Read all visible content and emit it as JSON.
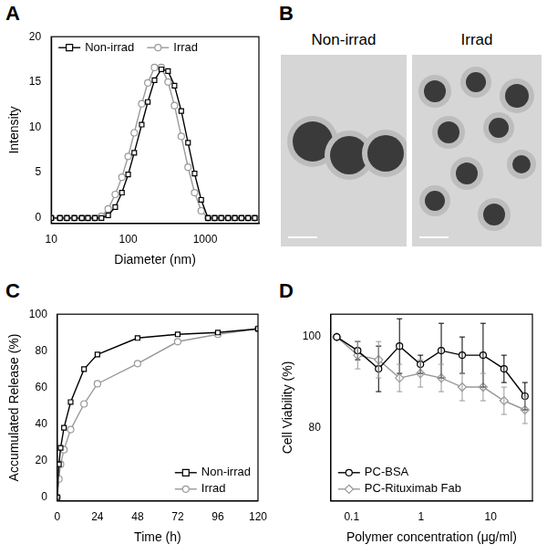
{
  "chart_data": [
    {
      "type": "line",
      "title": "A",
      "x_label": "Diameter (nm)",
      "y_label": "Intensity",
      "log": "x",
      "xlim": [
        10,
        5000
      ],
      "xticks": [
        10,
        100,
        1000
      ],
      "ylim": [
        -0.6,
        20
      ],
      "yticks": [
        0,
        5,
        10,
        15,
        20
      ],
      "grid": false,
      "legend": "upper left",
      "x": [
        10,
        13,
        16,
        20,
        25,
        30,
        37,
        45,
        55,
        68,
        83,
        100,
        120,
        150,
        180,
        220,
        270,
        330,
        400,
        490,
        600,
        730,
        890,
        1090,
        1330,
        1620,
        1990,
        2430,
        2970,
        3620,
        4420
      ],
      "series": [
        {
          "name": "Non-irrad",
          "color": "#000000",
          "marker": "square",
          "values": [
            0,
            0,
            0,
            0,
            0,
            0,
            0,
            0,
            0.3,
            1.2,
            2.8,
            4.8,
            7.2,
            10.3,
            12.8,
            15.2,
            16.4,
            16.2,
            14.6,
            11.8,
            8.3,
            4.9,
            2.0,
            0,
            0,
            0,
            0,
            0,
            0,
            0,
            0
          ]
        },
        {
          "name": "Irrad",
          "color": "#999999",
          "marker": "circle",
          "values": [
            0,
            0,
            0,
            0,
            0,
            0,
            0,
            0.2,
            1.0,
            2.6,
            4.5,
            6.8,
            9.4,
            12.6,
            14.9,
            16.6,
            16.6,
            15.0,
            12.4,
            9.0,
            5.6,
            2.8,
            0.8,
            0,
            0,
            0,
            0,
            0,
            0,
            0,
            0
          ]
        }
      ]
    },
    {
      "type": "image",
      "title": "B",
      "labels": [
        "Non-irrad",
        "Irrad"
      ]
    },
    {
      "type": "line",
      "title": "C",
      "x_label": "Time (h)",
      "y_label": "Accumulated Release (%)",
      "xlim": [
        0,
        120
      ],
      "xticks": [
        0,
        24,
        48,
        72,
        96,
        120
      ],
      "ylim": [
        -2,
        100
      ],
      "yticks": [
        0,
        20,
        40,
        60,
        80,
        100
      ],
      "grid": false,
      "legend": "lower right",
      "x": [
        0,
        1,
        2,
        4,
        8,
        16,
        24,
        48,
        72,
        96,
        120
      ],
      "series": [
        {
          "name": "Non-irrad",
          "color": "#000000",
          "marker": "square",
          "values": [
            0,
            18,
            27,
            38,
            52,
            70,
            78,
            87,
            89,
            90,
            92
          ]
        },
        {
          "name": "Irrad",
          "color": "#999999",
          "marker": "circle",
          "values": [
            0,
            10,
            18,
            26,
            37,
            51,
            62,
            73,
            85,
            89,
            92
          ]
        }
      ]
    },
    {
      "type": "line",
      "title": "D",
      "x_label": "Polymer concentration (μg/ml)",
      "y_label": "Cell Viability (%)",
      "log": "x",
      "xlim": [
        0.05,
        40
      ],
      "xticks": [
        0.1,
        1,
        10
      ],
      "ylim": [
        64,
        105
      ],
      "yticks": [
        80,
        100
      ],
      "grid": false,
      "legend": "lower left",
      "x": [
        0.061,
        0.122,
        0.244,
        0.488,
        0.977,
        1.95,
        3.9,
        7.8,
        15.6,
        31.25
      ],
      "series": [
        {
          "name": "PC-BSA",
          "color": "#000000",
          "marker": "circle",
          "values": [
            100,
            97,
            93,
            98,
            94,
            97,
            96,
            96,
            93,
            87
          ],
          "errors": [
            0,
            2,
            5,
            6,
            2,
            6,
            4,
            7,
            3,
            3
          ]
        },
        {
          "name": "PC-Rituximab Fab",
          "color": "#999999",
          "marker": "diamond",
          "values": [
            100,
            96,
            95,
            91,
            92,
            91,
            89,
            89,
            86,
            84
          ],
          "errors": [
            0,
            3,
            4,
            3,
            3,
            3,
            3,
            3,
            3,
            3
          ]
        }
      ]
    }
  ]
}
